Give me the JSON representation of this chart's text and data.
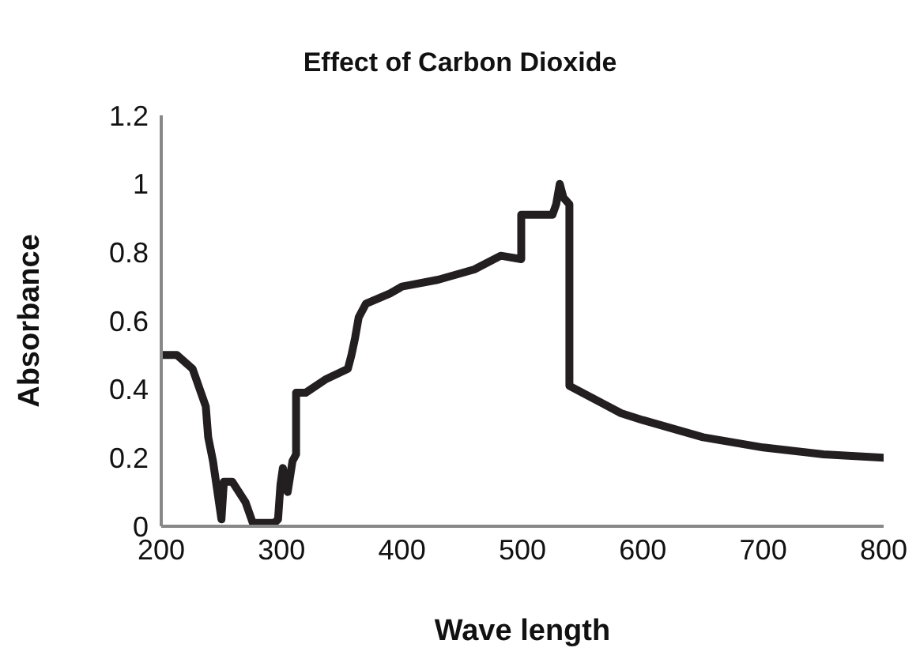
{
  "chart_data": {
    "type": "line",
    "title": "Effect of Carbon Dioxide",
    "xlabel": "Wave length",
    "ylabel": "Absorbance",
    "xlim": [
      200,
      800
    ],
    "xticks": [
      200,
      300,
      400,
      500,
      600,
      700,
      800
    ],
    "ylim": [
      0,
      1.2
    ],
    "yticks": [
      0,
      0.2,
      0.4,
      0.6,
      0.8,
      1,
      1.2
    ],
    "grid": false,
    "legend": false,
    "marker": "none",
    "line_style": "solid",
    "series": [
      {
        "color": "#231f20",
        "x": [
          200,
          213,
          226,
          237,
          239,
          243,
          250,
          252,
          259,
          270,
          276,
          294,
          297,
          299,
          301,
          305,
          309,
          312,
          312,
          320,
          337,
          355,
          358,
          361,
          364,
          370,
          390,
          400,
          430,
          460,
          482,
          499,
          499,
          525,
          528,
          531,
          534,
          539,
          539,
          582,
          600,
          650,
          700,
          750,
          800
        ],
        "values": [
          0.5,
          0.5,
          0.46,
          0.35,
          0.26,
          0.19,
          0.02,
          0.13,
          0.13,
          0.07,
          0.01,
          0.01,
          0.02,
          0.12,
          0.17,
          0.1,
          0.19,
          0.21,
          0.39,
          0.39,
          0.43,
          0.46,
          0.5,
          0.55,
          0.61,
          0.65,
          0.68,
          0.7,
          0.72,
          0.75,
          0.79,
          0.78,
          0.91,
          0.91,
          0.94,
          1,
          0.96,
          0.94,
          0.41,
          0.33,
          0.31,
          0.26,
          0.23,
          0.21,
          0.2
        ]
      }
    ]
  }
}
